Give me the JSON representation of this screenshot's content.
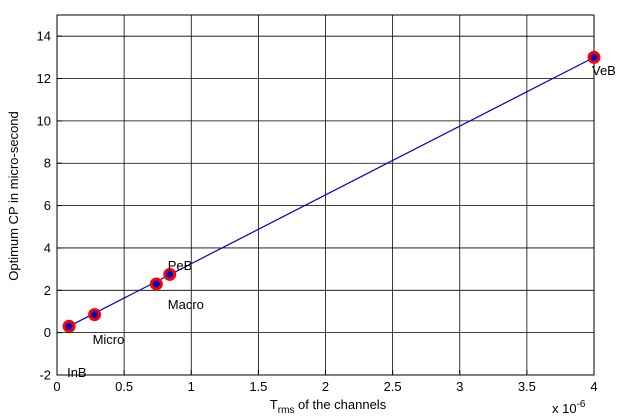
{
  "chart_data": {
    "type": "scatter",
    "title": "",
    "xlabel": {
      "main": "T",
      "sub": "rms",
      "rest": " of the channels"
    },
    "ylabel": "Optimum CP in micro-second",
    "x_exponent_label": {
      "base": "x 10",
      "exp": "-6"
    },
    "xlim": [
      0,
      4
    ],
    "ylim": [
      -2,
      15
    ],
    "xticks": [
      0,
      0.5,
      1,
      1.5,
      2,
      2.5,
      3,
      3.5,
      4
    ],
    "xtick_labels": [
      "0",
      "0.5",
      "1",
      "1.5",
      "2",
      "2.5",
      "3",
      "3.5",
      "4"
    ],
    "yticks": [
      -2,
      0,
      2,
      4,
      6,
      8,
      10,
      12,
      14
    ],
    "ytick_labels": [
      "-2",
      "0",
      "2",
      "4",
      "6",
      "8",
      "10",
      "12",
      "14"
    ],
    "grid": true,
    "series": [
      {
        "marker": "circle",
        "x": [
          0.09,
          0.28,
          0.74,
          0.84,
          4.0
        ],
        "y": [
          0.3,
          0.85,
          2.3,
          2.75,
          13.0
        ]
      }
    ],
    "fit_line": {
      "x": [
        0.09,
        4.0
      ],
      "y": [
        0.3,
        13.0
      ]
    },
    "annotations": [
      {
        "text": "InB",
        "x": 0.09,
        "y": -1.85
      },
      {
        "text": "Micro",
        "x": 0.28,
        "y": -0.3
      },
      {
        "text": "Macro",
        "x": 0.84,
        "y": 1.35
      },
      {
        "text": "PeB",
        "x": 0.84,
        "y": 3.2
      },
      {
        "text": "VeB",
        "x": 4.0,
        "y": 12.4
      }
    ],
    "colors": {
      "line": "#0000cc",
      "marker_edge": "#ff0000",
      "marker_face": "#0000cc",
      "grid": "#000000"
    }
  }
}
